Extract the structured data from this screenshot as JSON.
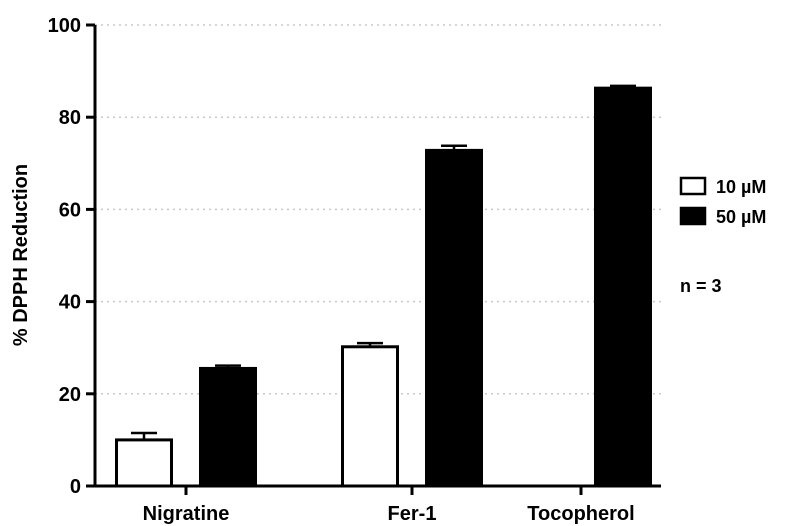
{
  "chart_data": {
    "type": "bar",
    "categories": [
      "Nigratine",
      "Fer-1",
      "Tocopherol"
    ],
    "series": [
      {
        "name": "10 µM",
        "fill": "#ffffff",
        "values": [
          10.0,
          30.2,
          null
        ],
        "errors": [
          1.5,
          0.8,
          null
        ]
      },
      {
        "name": "50 µM",
        "fill": "#000000",
        "values": [
          25.5,
          72.8,
          86.3
        ],
        "errors": [
          0.6,
          1.0,
          0.5
        ]
      }
    ],
    "title": "",
    "xlabel": "",
    "ylabel": "% DPPH Reduction",
    "ylim": [
      0,
      100
    ],
    "yticks": [
      0,
      20,
      40,
      60,
      80,
      100
    ],
    "grid": "horizontal dotted",
    "legend_position": "right",
    "annotation": "n = 3"
  }
}
